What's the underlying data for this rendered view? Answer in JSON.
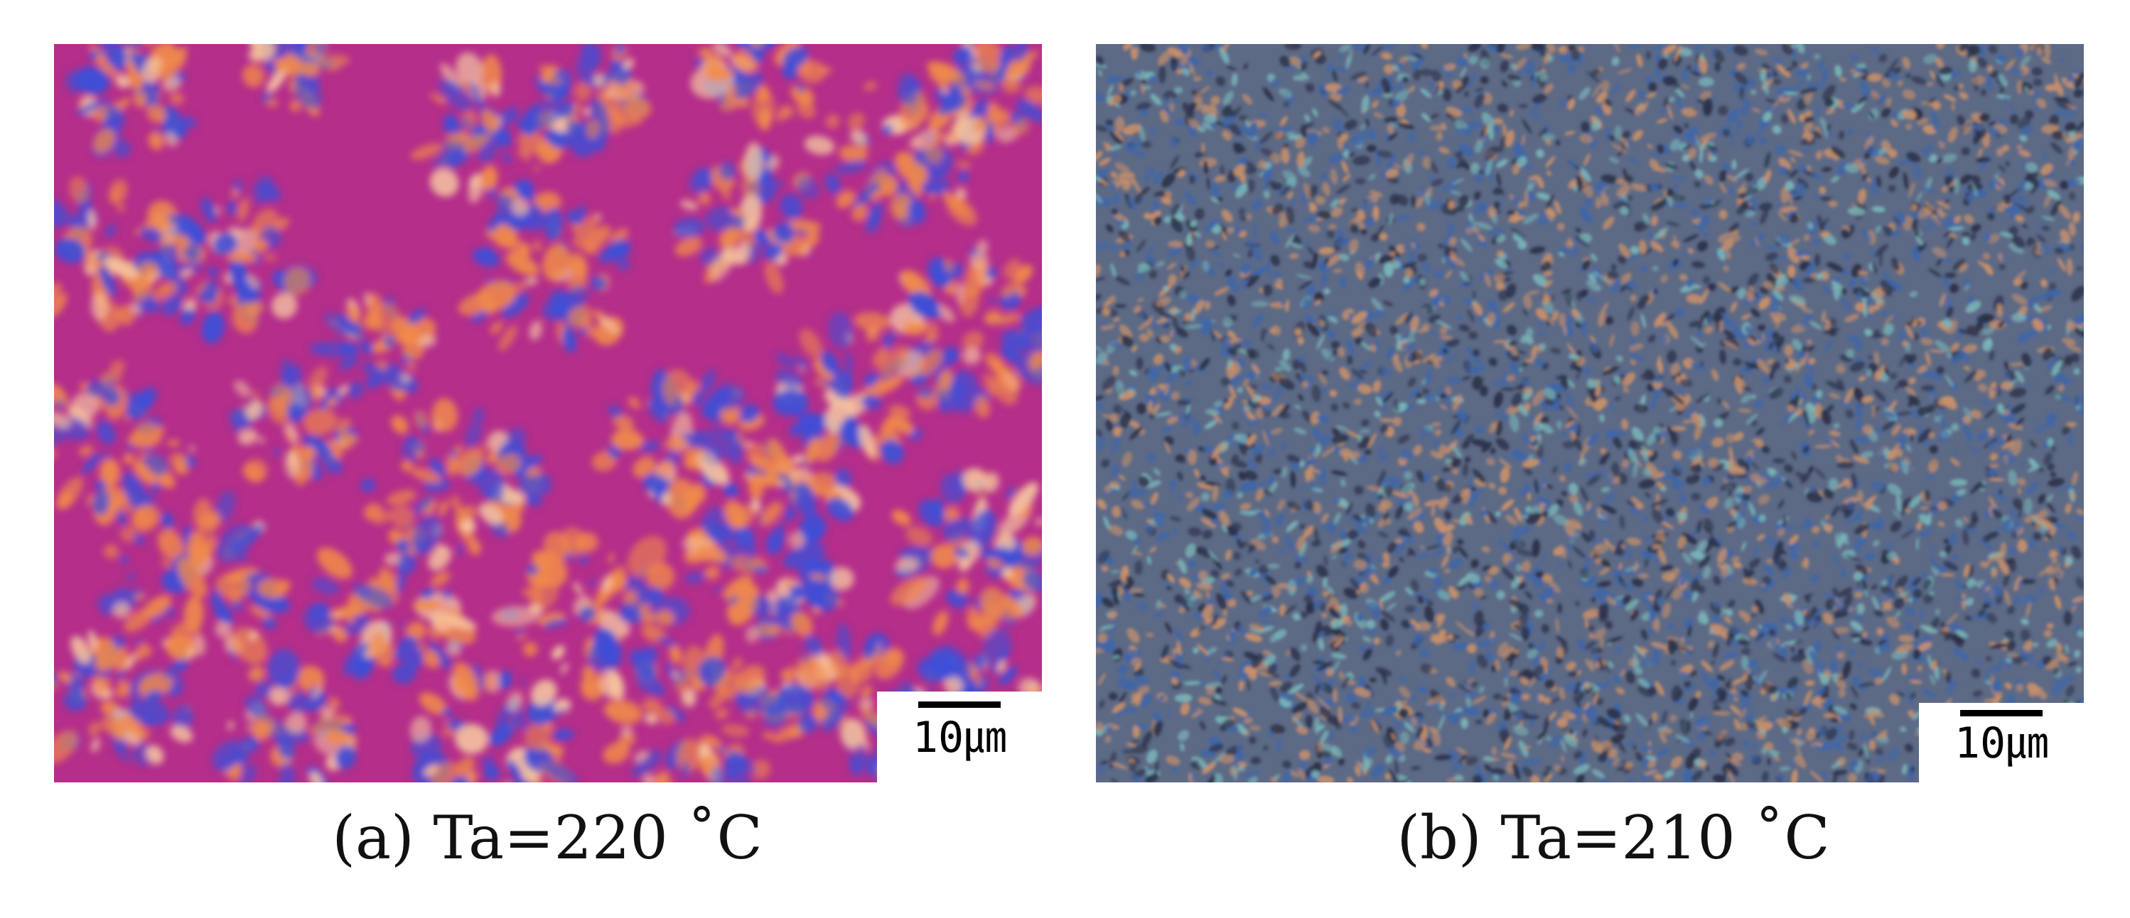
{
  "panels": [
    {
      "caption": "(a) Ta=220 ˚C",
      "scale_bar": "10㎛",
      "texture": "spherulites on magenta background",
      "colors": {
        "background": "#b42e8a",
        "orange": "#f08a4a",
        "blue": "#3c4fd8",
        "pale": "#f6c6a0"
      }
    },
    {
      "caption": "(b) Ta=210 ˚C",
      "scale_bar": "10㎛",
      "texture": "fine granular birefringent texture",
      "colors": {
        "background": "#5d6a86",
        "orange": "#c9906a",
        "blue": "#3f66a8",
        "cyan": "#79b5b8",
        "dark": "#2b3148"
      }
    }
  ]
}
